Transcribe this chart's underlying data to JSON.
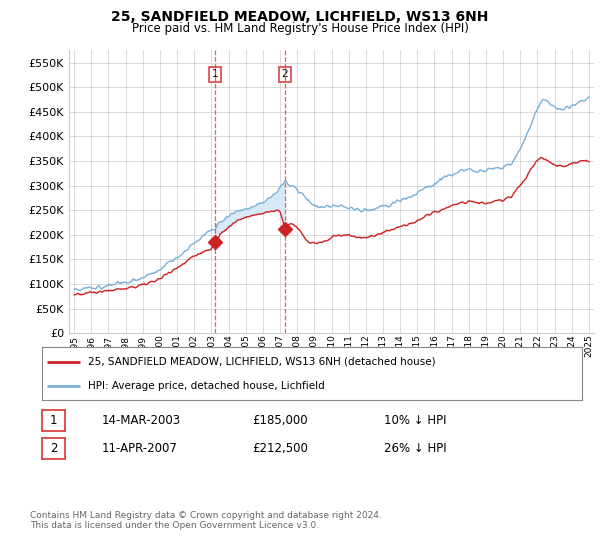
{
  "title": "25, SANDFIELD MEADOW, LICHFIELD, WS13 6NH",
  "subtitle": "Price paid vs. HM Land Registry's House Price Index (HPI)",
  "legend_entry1": "25, SANDFIELD MEADOW, LICHFIELD, WS13 6NH (detached house)",
  "legend_entry2": "HPI: Average price, detached house, Lichfield",
  "transaction1_date": "14-MAR-2003",
  "transaction1_price": "£185,000",
  "transaction1_hpi": "10% ↓ HPI",
  "transaction2_date": "11-APR-2007",
  "transaction2_price": "£212,500",
  "transaction2_hpi": "26% ↓ HPI",
  "footnote": "Contains HM Land Registry data © Crown copyright and database right 2024.\nThis data is licensed under the Open Government Licence v3.0.",
  "red_color": "#cc2222",
  "blue_color": "#7ab0d8",
  "shading_color": "#d8eaf7",
  "vline_color": "#dd4444",
  "background_color": "#ffffff",
  "grid_color": "#cccccc",
  "ylim": [
    0,
    575000
  ],
  "yticks": [
    0,
    50000,
    100000,
    150000,
    200000,
    250000,
    300000,
    350000,
    400000,
    450000,
    500000,
    550000
  ],
  "transaction1_x": 2003.21,
  "transaction1_y": 185000,
  "transaction2_x": 2007.28,
  "transaction2_y": 212500,
  "xmin": 1995,
  "xmax": 2025
}
